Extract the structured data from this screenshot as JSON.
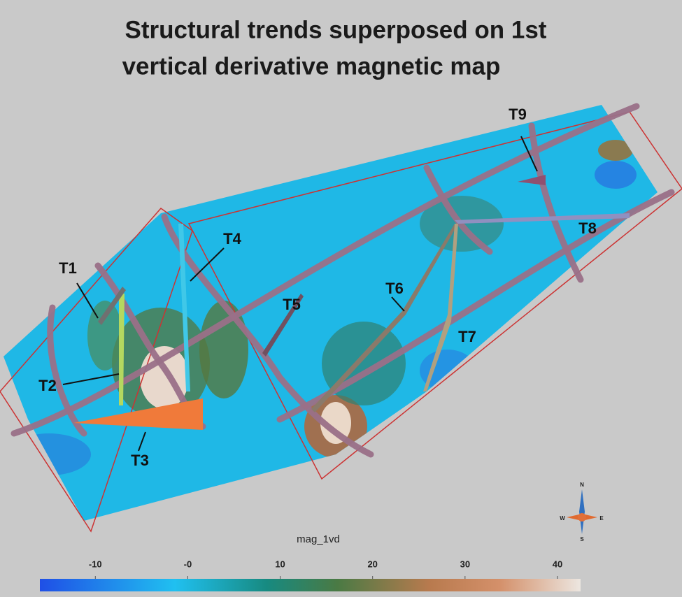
{
  "title": [
    "Structural trends superposed on 1st",
    "vertical derivative magnetic map"
  ],
  "map": {
    "labels": [
      "T1",
      "T2",
      "T3",
      "T4",
      "T5",
      "T6",
      "T7",
      "T8",
      "T9"
    ],
    "compass": [
      "N",
      "E",
      "S",
      "W"
    ]
  },
  "colorbar": {
    "label": "mag_1vd",
    "lim": [
      -16,
      42.5
    ],
    "ticks": [
      -10,
      {
        "value": 0,
        "label": "-0"
      },
      10,
      20,
      30,
      40
    ]
  }
}
